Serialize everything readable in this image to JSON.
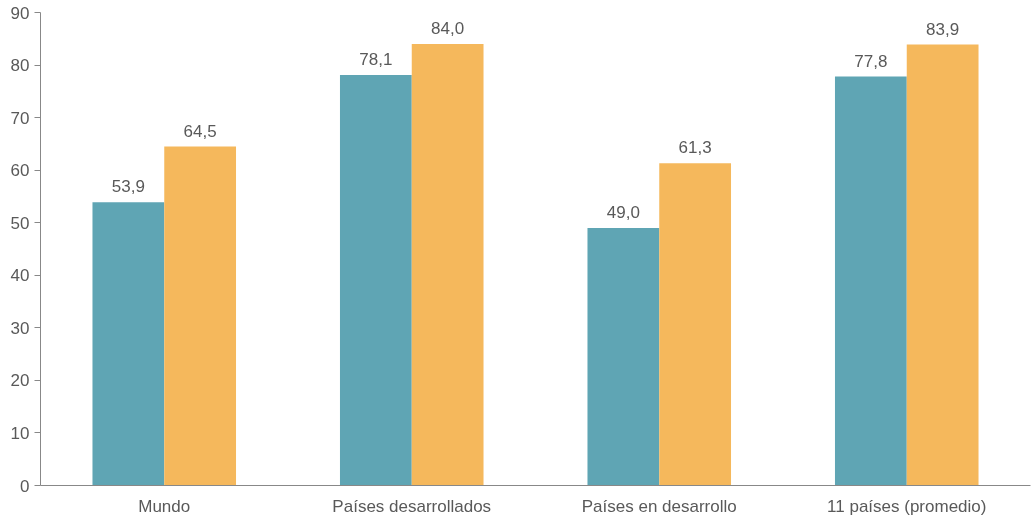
{
  "chart_data": {
    "type": "bar",
    "categories": [
      "Mundo",
      "Países desarrollados",
      "Países en desarrollo",
      "11 países (promedio)"
    ],
    "series": [
      {
        "color": "#5fa5b4",
        "values": [
          53.9,
          78.1,
          49.0,
          77.8
        ],
        "value_labels": [
          "53,9",
          "78,1",
          "49,0",
          "77,8"
        ]
      },
      {
        "color": "#f5b85c",
        "values": [
          64.5,
          84.0,
          61.3,
          83.9
        ],
        "value_labels": [
          "64,5",
          "84,0",
          "61,3",
          "83,9"
        ]
      }
    ],
    "ylim": [
      0,
      90
    ],
    "yticks": [
      0,
      10,
      20,
      30,
      40,
      50,
      60,
      70,
      80,
      90
    ],
    "grid": false
  }
}
